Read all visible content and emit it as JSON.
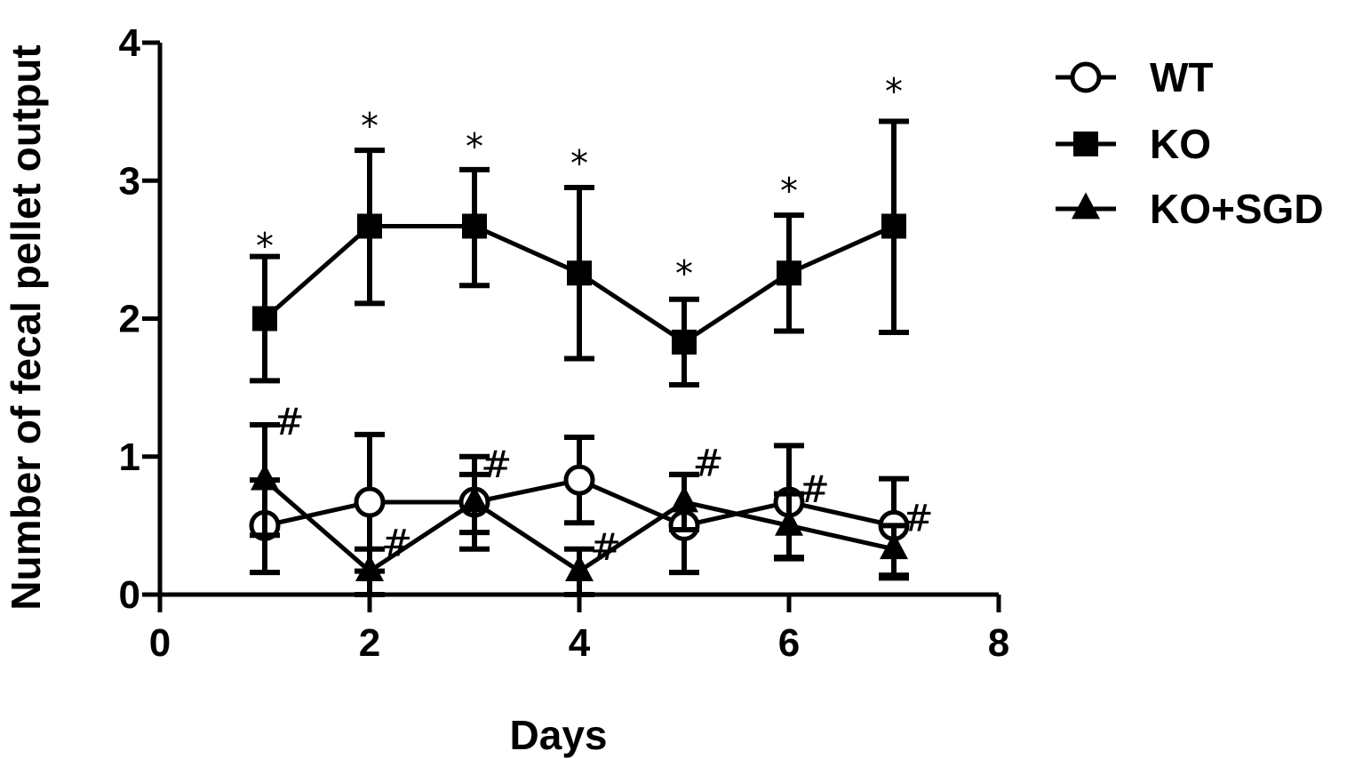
{
  "chart_data": {
    "type": "line",
    "xlabel": "Days",
    "ylabel": "Number of fecal pellet output",
    "xlim": [
      0,
      8
    ],
    "ylim": [
      0,
      4
    ],
    "xticks": [
      "0",
      "2",
      "4",
      "6",
      "8"
    ],
    "yticks": [
      "0",
      "1",
      "2",
      "3",
      "4"
    ],
    "grid": false,
    "legend_position": "top-right",
    "x": [
      1,
      2,
      3,
      4,
      5,
      6,
      7
    ],
    "series": [
      {
        "name": "WT",
        "marker": "open-circle",
        "values": [
          0.5,
          0.67,
          0.67,
          0.83,
          0.5,
          0.67,
          0.5
        ],
        "err_high": [
          0.83,
          1.16,
          1.0,
          1.14,
          0.87,
          1.08,
          0.84
        ],
        "err_low": [
          0.16,
          0.17,
          0.33,
          0.52,
          0.16,
          0.26,
          0.14
        ]
      },
      {
        "name": "KO",
        "marker": "filled-square",
        "values": [
          2.0,
          2.67,
          2.67,
          2.33,
          1.83,
          2.33,
          2.67
        ],
        "err_high": [
          2.45,
          3.22,
          3.08,
          2.95,
          2.14,
          2.75,
          3.43
        ],
        "err_low": [
          1.55,
          2.11,
          2.24,
          1.71,
          1.52,
          1.91,
          1.9
        ]
      },
      {
        "name": "KO+SGD",
        "marker": "filled-triangle",
        "values": [
          0.83,
          0.17,
          0.67,
          0.17,
          0.67,
          0.5,
          0.33
        ],
        "err_high": [
          1.23,
          0.33,
          0.87,
          0.33,
          0.87,
          0.73,
          0.5
        ],
        "err_low": [
          0.43,
          0.0,
          0.45,
          0.0,
          0.47,
          0.27,
          0.12
        ]
      }
    ],
    "annotations": [
      {
        "text": "*",
        "x": 1,
        "y": 2.58
      },
      {
        "text": "*",
        "x": 2,
        "y": 3.45
      },
      {
        "text": "*",
        "x": 3,
        "y": 3.3
      },
      {
        "text": "*",
        "x": 4,
        "y": 3.18
      },
      {
        "text": "*",
        "x": 5,
        "y": 2.38
      },
      {
        "text": "*",
        "x": 6,
        "y": 2.98
      },
      {
        "text": "*",
        "x": 7,
        "y": 3.7
      },
      {
        "text": "#",
        "x": 1.23,
        "y": 1.25
      },
      {
        "text": "#",
        "x": 2.26,
        "y": 0.37
      },
      {
        "text": "#",
        "x": 3.21,
        "y": 0.94
      },
      {
        "text": "#",
        "x": 4.25,
        "y": 0.34
      },
      {
        "text": "#",
        "x": 5.23,
        "y": 0.95
      },
      {
        "text": "#",
        "x": 6.24,
        "y": 0.76
      },
      {
        "text": "#",
        "x": 7.23,
        "y": 0.55
      }
    ]
  }
}
